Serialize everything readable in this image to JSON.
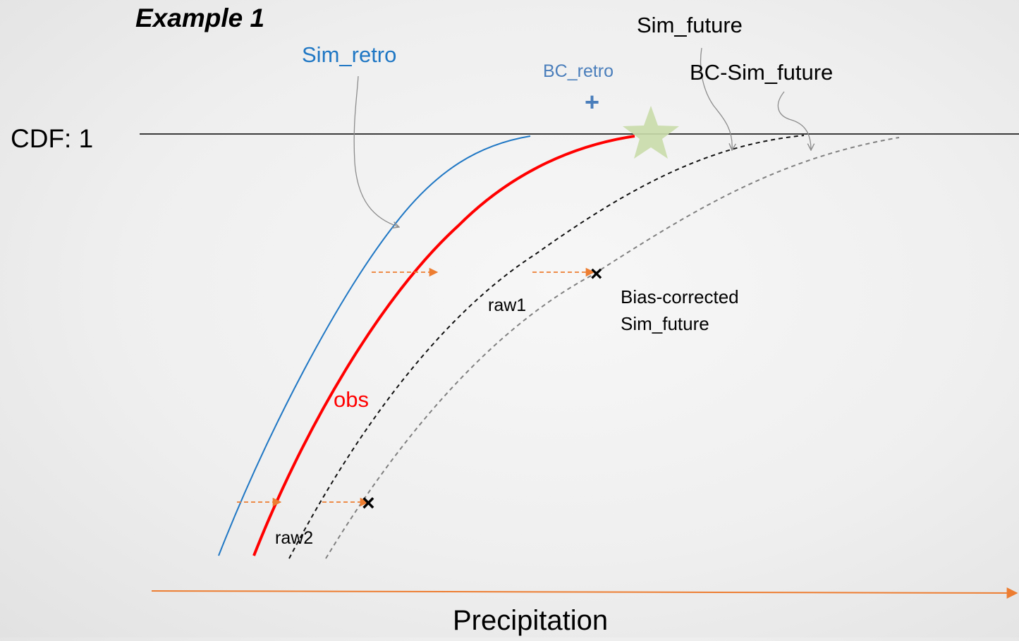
{
  "title": "Example 1",
  "cdf_label": "CDF: 1",
  "x_axis_label": "Precipitation",
  "labels": {
    "sim_retro": "Sim_retro",
    "bc_retro": "BC_retro",
    "bc_retro_marker": "+",
    "sim_future": "Sim_future",
    "bc_sim_future": "BC-Sim_future",
    "obs": "obs",
    "raw1": "raw1",
    "raw2": "raw2",
    "bias_corrected_line1": "Bias-corrected",
    "bias_corrected_line2": "Sim_future"
  },
  "markers": {
    "x_mark": "×"
  },
  "colors": {
    "sim_retro": "#1f77c4",
    "obs": "#ff0000",
    "sim_future": "#111111",
    "bc_sim_future": "#808080",
    "shift_arrow": "#ed7d31",
    "axis_arrow": "#ed7d31",
    "cdf_line": "#000000",
    "bc_retro_text": "#4a7ebb",
    "star": "#c9dcaa",
    "pointer": "#8c8c8c"
  },
  "icons": {
    "star": "star-icon",
    "axis_arrow": "arrow-right-icon"
  }
}
